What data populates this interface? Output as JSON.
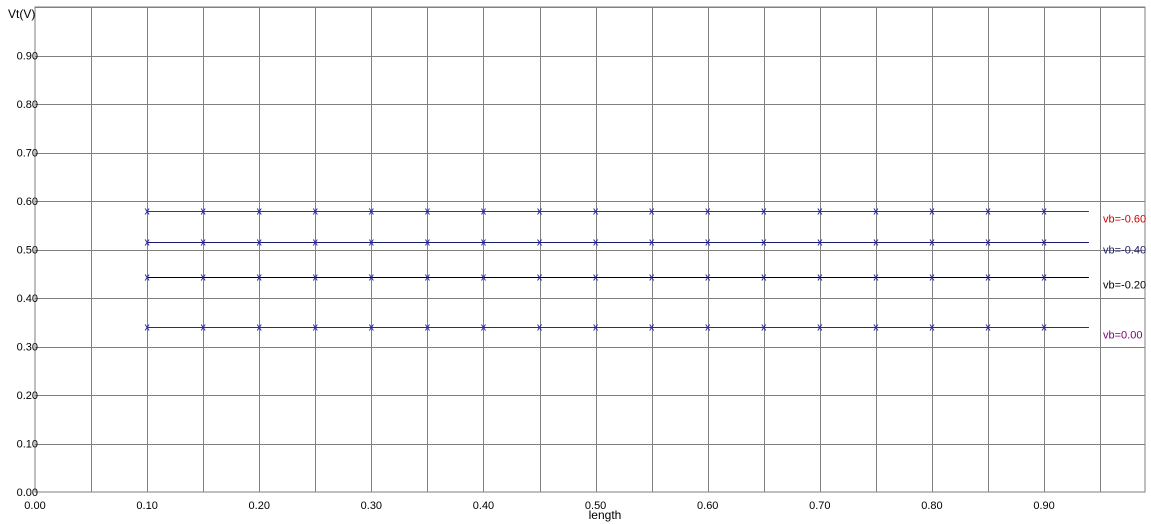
{
  "chart_data": {
    "type": "line",
    "title": "",
    "xlabel": "length",
    "ylabel": "Vt(V)",
    "xlim": [
      0.0,
      0.99
    ],
    "ylim": [
      0.0,
      1.0
    ],
    "grid": true,
    "x_ticks": [
      "0.00",
      "0.10",
      "0.20",
      "0.30",
      "0.40",
      "0.50",
      "0.60",
      "0.70",
      "0.80",
      "0.90"
    ],
    "y_ticks": [
      "0.00",
      "0.10",
      "0.20",
      "0.30",
      "0.40",
      "0.50",
      "0.60",
      "0.70",
      "0.80",
      "0.90"
    ],
    "x": [
      0.1,
      0.15,
      0.2,
      0.25,
      0.3,
      0.35,
      0.4,
      0.45,
      0.5,
      0.55,
      0.6,
      0.65,
      0.7,
      0.75,
      0.8,
      0.85,
      0.9
    ],
    "line_end_x": 0.94,
    "series": [
      {
        "name": "vb=-0.60",
        "color": "#cc0000",
        "marker_color": "#2a2aa0",
        "value": 0.58
      },
      {
        "name": "vb=-0.40",
        "color": "#1a1a6e",
        "marker_color": "#2a2aa0",
        "value": 0.515
      },
      {
        "name": "vb=-0.20",
        "color": "#000000",
        "marker_color": "#2a2aa0",
        "value": 0.443
      },
      {
        "name": "vb=0.00",
        "color": "#800080",
        "marker_color": "#2a2aa0",
        "value": 0.34
      }
    ]
  }
}
